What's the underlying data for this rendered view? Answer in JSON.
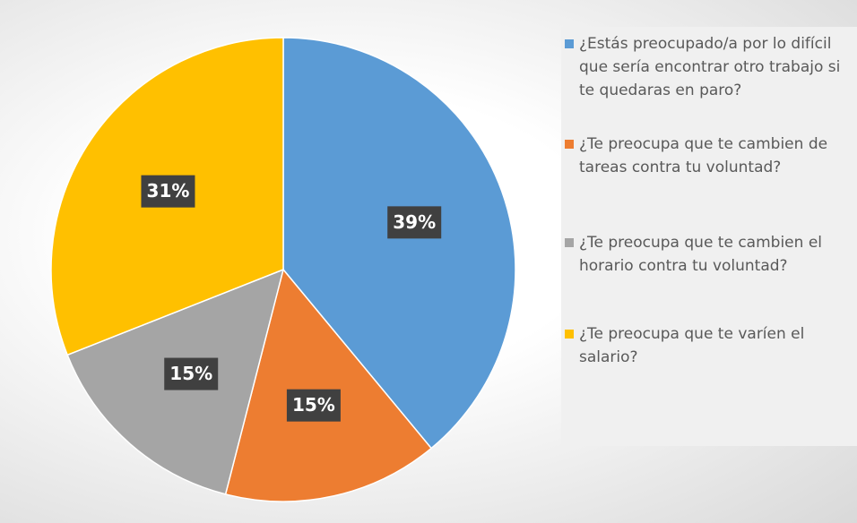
{
  "chart_data": {
    "type": "pie",
    "categories": [
      "¿Estás preocupado/a por lo difícil que sería encontrar otro trabajo si te quedaras en paro?",
      "¿Te preocupa que te cambien de tareas contra tu voluntad?",
      "¿Te preocupa que te cambien el horario contra tu voluntad?",
      "¿Te preocupa que te varíen el salario?"
    ],
    "values": [
      39,
      15,
      15,
      31
    ],
    "value_labels": [
      "39%",
      "15%",
      "15%",
      "31%"
    ],
    "colors": [
      "#5b9bd5",
      "#ed7d31",
      "#a5a5a5",
      "#ffc000"
    ],
    "legend": "right"
  }
}
